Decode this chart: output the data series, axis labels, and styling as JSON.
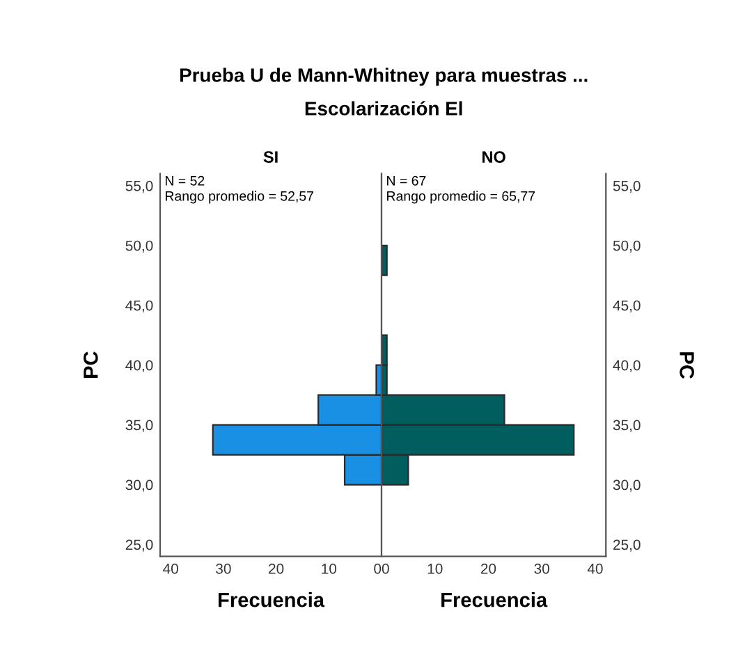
{
  "chart_data": [
    {
      "type": "histogram",
      "orientation": "horizontal",
      "title": "Prueba U de Mann-Whitney para muestras ...",
      "subtitle": "Escolarización El",
      "x2label": "SI",
      "xlabel": "Frecuencia",
      "ylabel": "PC",
      "annotations": [
        "N = 52",
        "Rango promedio = 52,57"
      ],
      "bins": [
        30,
        32.5,
        35,
        37.5,
        40
      ],
      "values": [
        7,
        32,
        12,
        1
      ],
      "color": "#1990e4",
      "xlim": [
        42,
        0
      ],
      "xticks": [
        40,
        30,
        20,
        10,
        0
      ],
      "ylim": [
        24,
        56
      ],
      "yticks": [
        {
          "value": 25,
          "label": "25,0"
        },
        {
          "value": 30,
          "label": "30,0"
        },
        {
          "value": 35,
          "label": "35,0"
        },
        {
          "value": 40,
          "label": "40,0"
        },
        {
          "value": 45,
          "label": "45,0"
        },
        {
          "value": 50,
          "label": "50,0"
        },
        {
          "value": 55,
          "label": "55,0"
        }
      ],
      "grid": false,
      "legend": false
    },
    {
      "type": "histogram",
      "orientation": "horizontal",
      "x2label": "NO",
      "xlabel": "Frecuencia",
      "ylabel": "PC",
      "annotations": [
        "N = 67",
        "Rango promedio = 65,77"
      ],
      "bins": [
        30,
        32.5,
        35,
        37.5,
        40,
        42.5,
        45,
        47.5,
        50
      ],
      "values": [
        5,
        36,
        23,
        1,
        1,
        0,
        0,
        1
      ],
      "color": "#005e5e",
      "xlim": [
        0,
        42
      ],
      "xticks": [
        0,
        10,
        20,
        30,
        40
      ],
      "ylim": [
        24,
        56
      ],
      "yticks": [
        {
          "value": 25,
          "label": "25,0"
        },
        {
          "value": 30,
          "label": "30,0"
        },
        {
          "value": 35,
          "label": "35,0"
        },
        {
          "value": 40,
          "label": "40,0"
        },
        {
          "value": 45,
          "label": "45,0"
        },
        {
          "value": 50,
          "label": "50,0"
        },
        {
          "value": 55,
          "label": "55,0"
        }
      ],
      "grid": false,
      "legend": false
    }
  ]
}
